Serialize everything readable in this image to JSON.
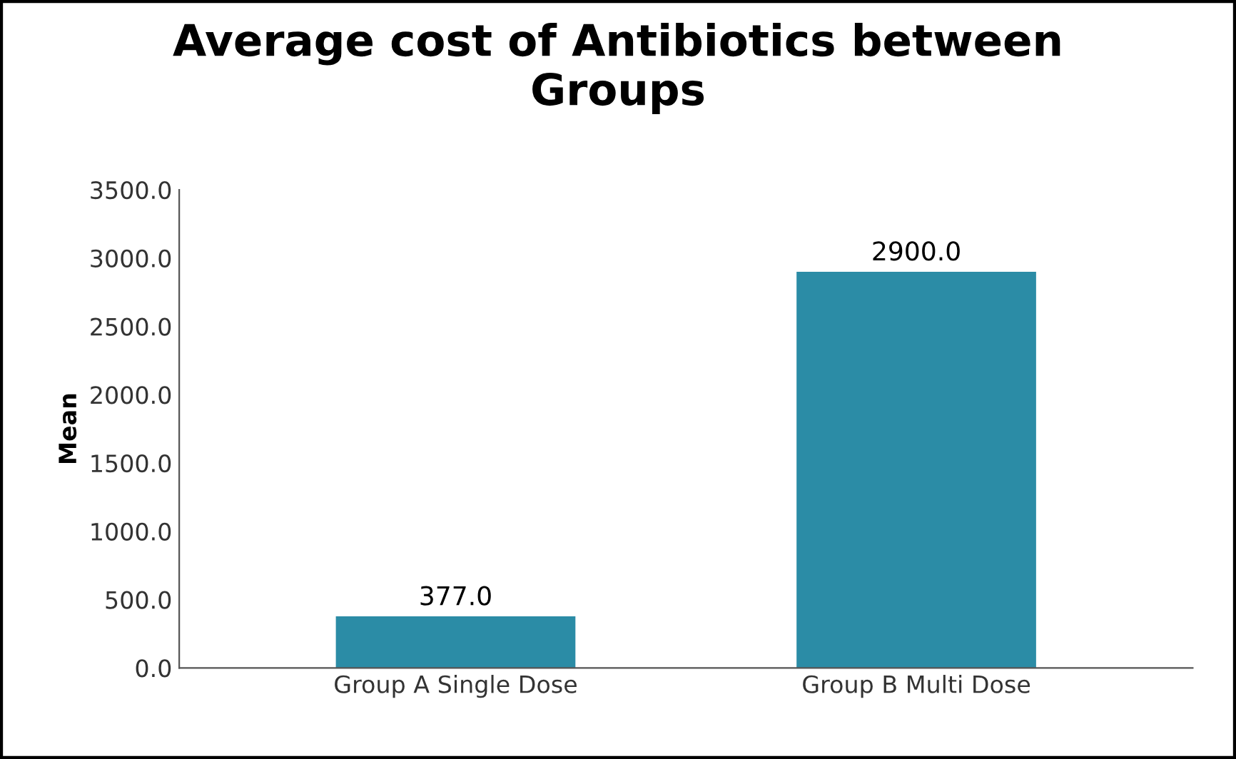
{
  "chart_data": {
    "type": "bar",
    "title": "Average cost of Antibiotics between\nGroups",
    "ylabel": "Mean",
    "categories": [
      "Group A Single Dose",
      "Group B Multi Dose"
    ],
    "values": [
      377,
      2900
    ],
    "value_labels": [
      "377.0",
      "2900.0"
    ],
    "color": "#2b8ca6",
    "ylim": [
      0,
      3500
    ],
    "yticks": [
      {
        "value": 0,
        "label": "0.0"
      },
      {
        "value": 500,
        "label": "500.0"
      },
      {
        "value": 1000,
        "label": "1000.0"
      },
      {
        "value": 1500,
        "label": "1500.0"
      },
      {
        "value": 2000,
        "label": "2000.0"
      },
      {
        "value": 2500,
        "label": "2500.0"
      },
      {
        "value": 3000,
        "label": "3000.0"
      },
      {
        "value": 3500,
        "label": "3500.0"
      }
    ],
    "grid": false
  }
}
